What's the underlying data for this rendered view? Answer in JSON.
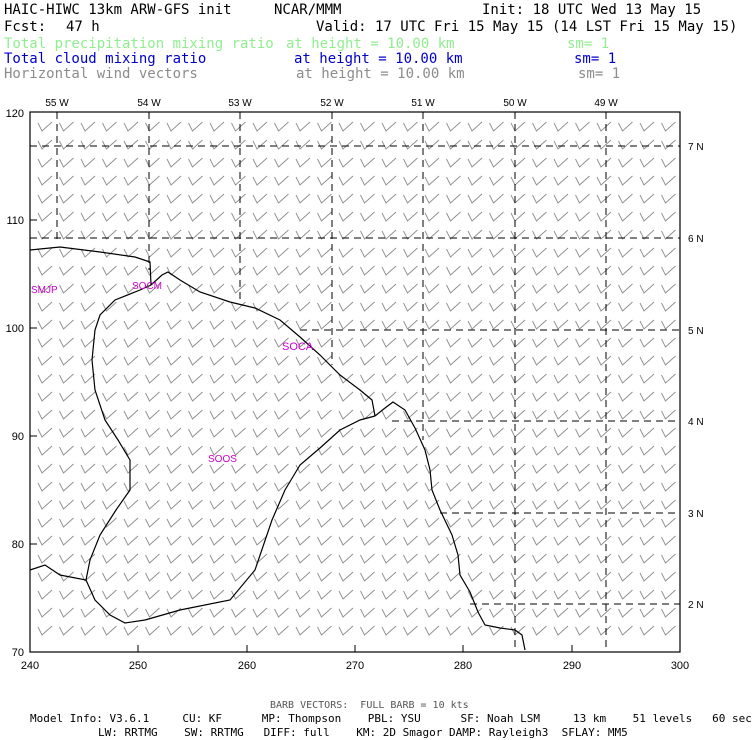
{
  "header": {
    "title": "HAIC-HIWC 13km ARW-GFS init",
    "org": "NCAR/MMM",
    "init": "Init: 18 UTC Wed 13 May 15",
    "fcst_label": "Fcst:",
    "fcst_value": "47 h",
    "valid": "Valid: 17 UTC Fri 15 May 15 (14 LST Fri 15 May 15)"
  },
  "fields": [
    {
      "name": "Total precipitation mixing ratio",
      "height": "at height = 10.00 km",
      "sm": "sm= 1",
      "color": "#90ee90"
    },
    {
      "name": "Total cloud mixing ratio",
      "height": "at height = 10.00 km",
      "sm": "sm= 1",
      "color": "#0000cd"
    },
    {
      "name": "Horizontal wind vectors",
      "height": "at height = 10.00 km",
      "sm": "sm= 1",
      "color": "#8c8c8c"
    }
  ],
  "map": {
    "x_ticks": [
      "240",
      "250",
      "260",
      "270",
      "280",
      "290",
      "300"
    ],
    "y_ticks": [
      "70",
      "80",
      "90",
      "100",
      "110",
      "120"
    ],
    "lon_labels": [
      "55 W",
      "54 W",
      "53 W",
      "52 W",
      "51 W",
      "50 W",
      "49 W"
    ],
    "lat_labels": [
      "7 N",
      "6 N",
      "5 N",
      "4 N",
      "3 N",
      "2 N"
    ],
    "stations": [
      "SMJP",
      "SOCM",
      "SOCA",
      "SOOS"
    ],
    "station_color": "#cc00cc",
    "barb_color": "#8c8c8c",
    "coast_color": "#000000"
  },
  "footer": {
    "barb_note": "BARB VECTORS:  FULL BARB = 10 kts",
    "line1": "Model Info: V3.6.1     CU: KF      MP: Thompson    PBL: YSU      SF: Noah LSM     13 km    51 levels   60 sec",
    "line2": "LW: RRTMG    SW: RRTMG   DIFF: full    KM: 2D Smagor DAMP: Rayleigh3  SFLAY: MM5"
  }
}
